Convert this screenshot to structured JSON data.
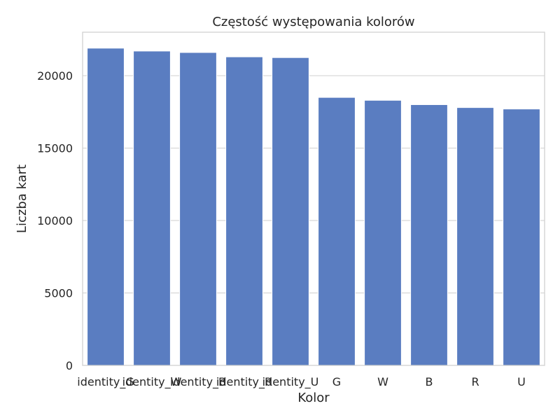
{
  "chart_data": {
    "type": "bar",
    "title": "Częstość występowania kolorów",
    "xlabel": "Kolor",
    "ylabel": "Liczba kart",
    "categories": [
      "identity_G",
      "identity_W",
      "identity_B",
      "identity_R",
      "identity_U",
      "G",
      "W",
      "B",
      "R",
      "U"
    ],
    "values": [
      21900,
      21700,
      21600,
      21300,
      21250,
      18500,
      18300,
      18000,
      17800,
      17700
    ],
    "ylim": [
      0,
      23000
    ],
    "yticks": [
      0,
      5000,
      10000,
      15000,
      20000
    ],
    "bar_color": "#5a7dc1",
    "grid": true
  }
}
